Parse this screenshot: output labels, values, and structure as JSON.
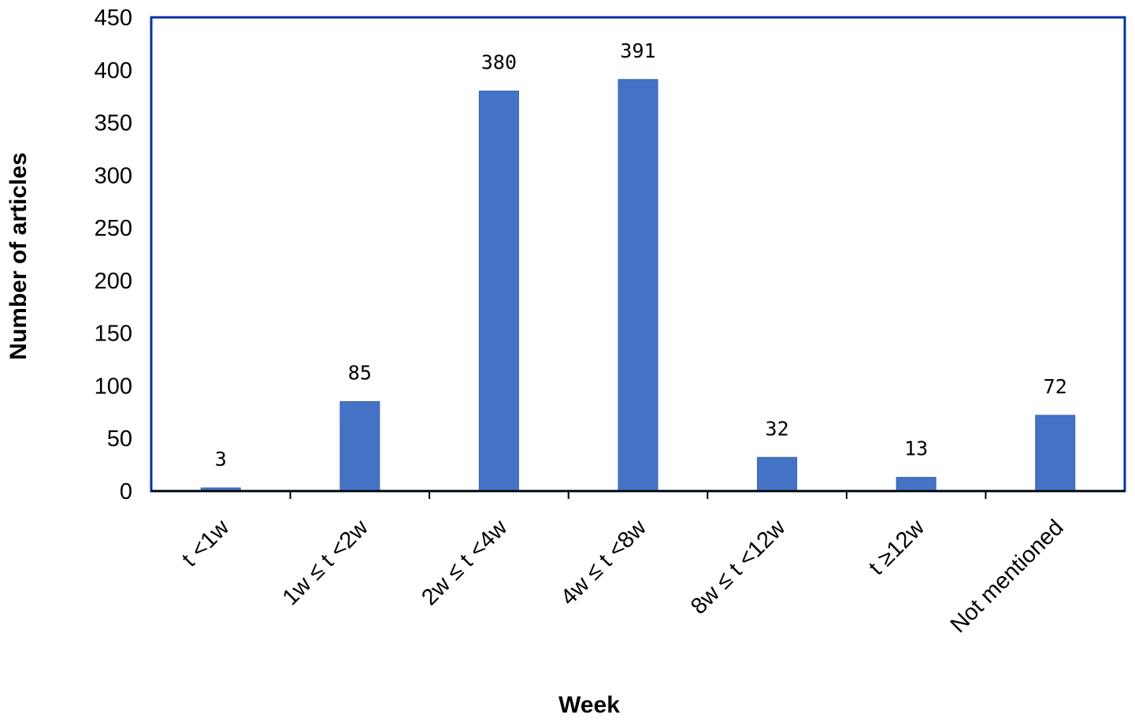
{
  "chart_data": {
    "type": "bar",
    "title": "",
    "xlabel": "Week",
    "ylabel": "Number of articles",
    "categories": [
      "t <1w",
      "1w ≤ t <2w",
      "2w ≤ t <4w",
      "4w ≤ t <8w",
      "8w ≤ t <12w",
      "t ≥12w",
      "Not mentioned"
    ],
    "values": [
      3,
      85,
      380,
      391,
      32,
      13,
      72
    ],
    "data_labels": [
      "3",
      "85",
      "380",
      "391",
      "32",
      "13",
      "72"
    ],
    "ylim": [
      0,
      450
    ],
    "yticks": [
      0,
      50,
      100,
      150,
      200,
      250,
      300,
      350,
      400,
      450
    ],
    "ytick_labels": [
      "0",
      "50",
      "100",
      "150",
      "200",
      "250",
      "300",
      "350",
      "400",
      "450"
    ],
    "grid": false,
    "legend": "none",
    "colors": {
      "bar": "#4472c4",
      "frame": "#0033a0",
      "axis": "#000000"
    }
  }
}
